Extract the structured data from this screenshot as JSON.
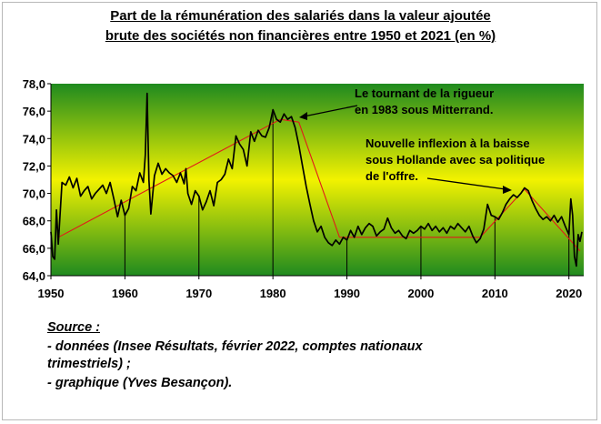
{
  "header": {
    "title_line1": "Part de la rémunération des salariés dans la valeur ajoutée",
    "title_line2": "brute des sociétés non financières entre 1950 et 2021 (en %)"
  },
  "source": {
    "heading": "Source :",
    "line1": "- données (Insee Résultats, février 2022, comptes nationaux",
    "line2": "trimestriels) ;",
    "line3": "- graphique (Yves Besançon)."
  },
  "annotations": {
    "rigueur_line1": "Le tournant de la rigueur",
    "rigueur_line2": "en 1983 sous Mitterrand.",
    "hollande_line1": "Nouvelle inflexion à la baisse",
    "hollande_line2": "sous Hollande avec sa politique",
    "hollande_line3": "de l'offre."
  },
  "colors": {
    "series": "#000000",
    "trend": "#e21a1a",
    "gradient_top": "#1f8a1f",
    "gradient_mid": "#f2f200",
    "gradient_bottom": "#1f8a1f"
  },
  "chart_data": {
    "type": "line",
    "title": "Part de la rémunération des salariés dans la valeur ajoutée brute des sociétés non financières entre 1950 et 2021 (en %)",
    "xlim": [
      1950,
      2022
    ],
    "ylim": [
      64,
      78
    ],
    "x_ticks": [
      "1950",
      "1960",
      "1970",
      "1980",
      "1990",
      "2000",
      "2010",
      "2020"
    ],
    "y_ticks": [
      "64,0",
      "66,0",
      "68,0",
      "70,0",
      "72,0",
      "74,0",
      "76,0",
      "78,0"
    ],
    "grid": false,
    "series": [
      {
        "x": [
          1950.0,
          1950.25,
          1950.5,
          1950.75,
          1951.0,
          1951.5,
          1952.0,
          1952.5,
          1953.0,
          1953.5,
          1954.0,
          1954.5,
          1955.0,
          1955.5,
          1956.0,
          1956.5,
          1957.0,
          1957.5,
          1958.0,
          1958.5,
          1959.0,
          1959.5,
          1960.0,
          1960.5,
          1961.0,
          1961.5,
          1962.0,
          1962.5,
          1962.75,
          1963.0,
          1963.25,
          1963.5,
          1964.0,
          1964.5,
          1965.0,
          1965.5,
          1966.0,
          1966.5,
          1967.0,
          1967.5,
          1968.0,
          1968.25,
          1968.5,
          1969.0,
          1969.5,
          1970.0,
          1970.5,
          1971.0,
          1971.5,
          1972.0,
          1972.5,
          1973.0,
          1973.5,
          1974.0,
          1974.5,
          1975.0,
          1975.5,
          1976.0,
          1976.5,
          1977.0,
          1977.5,
          1978.0,
          1978.5,
          1979.0,
          1979.5,
          1980.0,
          1980.5,
          1981.0,
          1981.5,
          1982.0,
          1982.5,
          1983.0,
          1983.5,
          1984.0,
          1984.5,
          1985.0,
          1985.5,
          1986.0,
          1986.5,
          1987.0,
          1987.5,
          1988.0,
          1988.5,
          1989.0,
          1989.5,
          1990.0,
          1990.5,
          1991.0,
          1991.5,
          1992.0,
          1992.5,
          1993.0,
          1993.5,
          1994.0,
          1994.5,
          1995.0,
          1995.5,
          1996.0,
          1996.5,
          1997.0,
          1997.5,
          1998.0,
          1998.5,
          1999.0,
          1999.5,
          2000.0,
          2000.5,
          2001.0,
          2001.5,
          2002.0,
          2002.5,
          2003.0,
          2003.5,
          2004.0,
          2004.5,
          2005.0,
          2005.5,
          2006.0,
          2006.5,
          2007.0,
          2007.5,
          2008.0,
          2008.5,
          2009.0,
          2009.5,
          2010.0,
          2010.5,
          2011.0,
          2011.5,
          2012.0,
          2012.5,
          2013.0,
          2013.5,
          2014.0,
          2014.5,
          2015.0,
          2015.5,
          2016.0,
          2016.5,
          2017.0,
          2017.5,
          2018.0,
          2018.5,
          2019.0,
          2019.5,
          2020.0,
          2020.25,
          2020.5,
          2020.75,
          2021.0,
          2021.25,
          2021.5,
          2021.75
        ],
        "values": [
          67.2,
          65.4,
          65.2,
          68.8,
          66.3,
          70.8,
          70.6,
          71.2,
          70.4,
          71.1,
          69.8,
          70.2,
          70.5,
          69.6,
          70.0,
          70.3,
          70.6,
          70.0,
          70.8,
          69.6,
          68.3,
          69.5,
          68.4,
          68.9,
          70.5,
          70.2,
          71.5,
          70.8,
          72.8,
          77.3,
          71.0,
          68.5,
          71.3,
          72.2,
          71.4,
          71.8,
          71.5,
          71.3,
          70.8,
          71.5,
          70.7,
          71.8,
          70.0,
          69.2,
          70.2,
          69.8,
          68.8,
          69.4,
          70.2,
          69.1,
          70.8,
          71.0,
          71.4,
          72.5,
          71.8,
          74.2,
          73.6,
          73.2,
          72.0,
          74.5,
          73.8,
          74.6,
          74.2,
          74.1,
          74.8,
          76.1,
          75.4,
          75.2,
          75.8,
          75.4,
          75.6,
          74.8,
          73.5,
          72.0,
          70.5,
          69.2,
          68.0,
          67.2,
          67.6,
          66.8,
          66.4,
          66.2,
          66.6,
          66.3,
          66.8,
          66.6,
          67.3,
          66.8,
          67.6,
          67.0,
          67.5,
          67.8,
          67.6,
          66.9,
          67.2,
          67.4,
          68.2,
          67.5,
          67.1,
          67.3,
          66.9,
          66.7,
          67.3,
          67.1,
          67.3,
          67.6,
          67.4,
          67.8,
          67.3,
          67.6,
          67.2,
          67.5,
          67.1,
          67.6,
          67.4,
          67.8,
          67.5,
          67.2,
          67.6,
          66.9,
          66.4,
          66.7,
          67.4,
          69.2,
          68.4,
          68.3,
          68.1,
          68.6,
          69.2,
          69.6,
          69.9,
          69.7,
          70.0,
          70.4,
          70.2,
          69.5,
          68.9,
          68.4,
          68.1,
          68.3,
          68.0,
          68.4,
          67.9,
          68.3,
          67.6,
          67.0,
          69.6,
          68.4,
          65.4,
          64.7,
          67.0,
          66.5,
          67.2
        ],
        "trend": {
          "x": [
            1951,
            1981,
            1983.5,
            1989,
            2008,
            2014,
            2021.5
          ],
          "values": [
            66.8,
            75.4,
            75.2,
            66.8,
            66.8,
            70.3,
            65.8
          ]
        }
      }
    ]
  }
}
